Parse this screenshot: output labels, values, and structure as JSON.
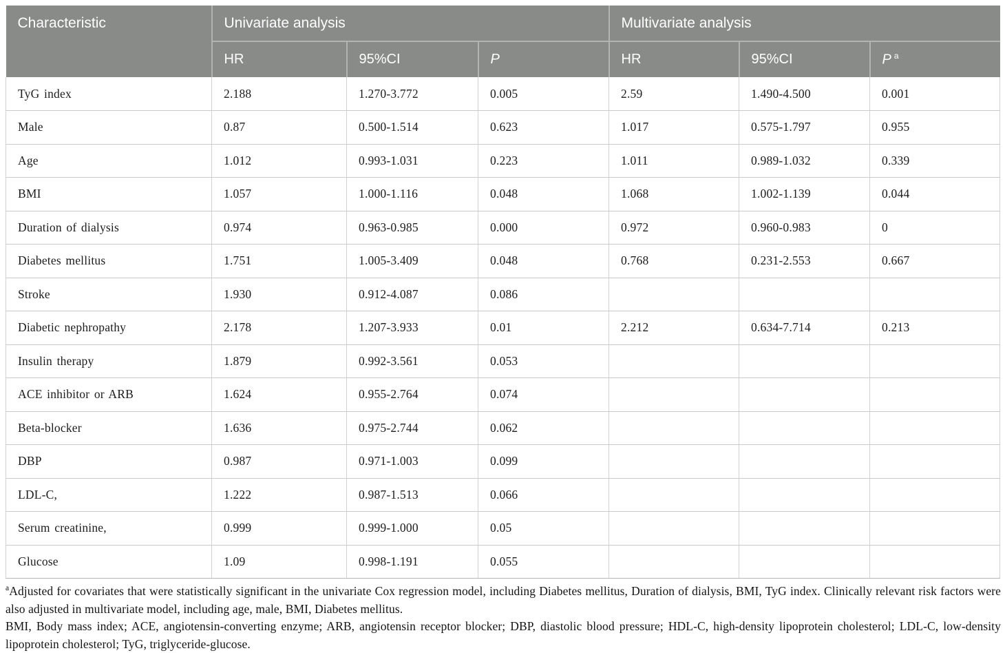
{
  "colors": {
    "header_bg": "#898b89",
    "header_text": "#ffffff",
    "body_text": "#1c1c1c",
    "row_border": "#c9c9c9"
  },
  "table": {
    "header": {
      "characteristic": "Characteristic",
      "univariate": "Univariate analysis",
      "multivariate": "Multivariate analysis",
      "hr1": "HR",
      "ci1": "95%CI",
      "p1": "P",
      "hr2": "HR",
      "ci2": "95%CI",
      "p2": "P",
      "p2_sup": "a"
    },
    "rows": [
      {
        "label": "TyG index",
        "u_hr": "2.188",
        "u_ci": "1.270-3.772",
        "u_p": "0.005",
        "m_hr": "2.59",
        "m_ci": "1.490-4.500",
        "m_p": "0.001"
      },
      {
        "label": "Male",
        "u_hr": "0.87",
        "u_ci": "0.500-1.514",
        "u_p": "0.623",
        "m_hr": "1.017",
        "m_ci": "0.575-1.797",
        "m_p": "0.955"
      },
      {
        "label": "Age",
        "u_hr": "1.012",
        "u_ci": "0.993-1.031",
        "u_p": "0.223",
        "m_hr": "1.011",
        "m_ci": "0.989-1.032",
        "m_p": "0.339"
      },
      {
        "label": "BMI",
        "u_hr": "1.057",
        "u_ci": "1.000-1.116",
        "u_p": "0.048",
        "m_hr": "1.068",
        "m_ci": "1.002-1.139",
        "m_p": "0.044"
      },
      {
        "label": "Duration of dialysis",
        "u_hr": "0.974",
        "u_ci": "0.963-0.985",
        "u_p": "0.000",
        "m_hr": "0.972",
        "m_ci": "0.960-0.983",
        "m_p": "0"
      },
      {
        "label": "Diabetes mellitus",
        "u_hr": "1.751",
        "u_ci": "1.005-3.409",
        "u_p": "0.048",
        "m_hr": "0.768",
        "m_ci": "0.231-2.553",
        "m_p": "0.667"
      },
      {
        "label": "Stroke",
        "u_hr": "1.930",
        "u_ci": "0.912-4.087",
        "u_p": "0.086",
        "m_hr": "",
        "m_ci": "",
        "m_p": ""
      },
      {
        "label": "Diabetic nephropathy",
        "u_hr": "2.178",
        "u_ci": "1.207-3.933",
        "u_p": "0.01",
        "m_hr": "2.212",
        "m_ci": "0.634-7.714",
        "m_p": "0.213"
      },
      {
        "label": "Insulin therapy",
        "u_hr": "1.879",
        "u_ci": "0.992-3.561",
        "u_p": "0.053",
        "m_hr": "",
        "m_ci": "",
        "m_p": ""
      },
      {
        "label": "ACE inhibitor or ARB",
        "u_hr": "1.624",
        "u_ci": "0.955-2.764",
        "u_p": "0.074",
        "m_hr": "",
        "m_ci": "",
        "m_p": ""
      },
      {
        "label": "Beta-blocker",
        "u_hr": "1.636",
        "u_ci": "0.975-2.744",
        "u_p": "0.062",
        "m_hr": "",
        "m_ci": "",
        "m_p": ""
      },
      {
        "label": "DBP",
        "u_hr": "0.987",
        "u_ci": "0.971-1.003",
        "u_p": "0.099",
        "m_hr": "",
        "m_ci": "",
        "m_p": ""
      },
      {
        "label": "LDL-C,",
        "u_hr": "1.222",
        "u_ci": "0.987-1.513",
        "u_p": "0.066",
        "m_hr": "",
        "m_ci": "",
        "m_p": ""
      },
      {
        "label": "Serum creatinine,",
        "u_hr": "0.999",
        "u_ci": "0.999-1.000",
        "u_p": "0.05",
        "m_hr": "",
        "m_ci": "",
        "m_p": ""
      },
      {
        "label": "Glucose",
        "u_hr": "1.09",
        "u_ci": "0.998-1.191",
        "u_p": "0.055",
        "m_hr": "",
        "m_ci": "",
        "m_p": ""
      }
    ]
  },
  "footnotes": {
    "sup": "a",
    "note_a": "Adjusted for covariates that were statistically significant in the univariate Cox regression model, including Diabetes mellitus, Duration of dialysis, BMI, TyG index. Clinically relevant risk factors were also adjusted in multivariate model, including age, male, BMI, Diabetes mellitus.",
    "abbreviations": "BMI, Body mass index; ACE, angiotensin-converting enzyme; ARB, angiotensin receptor blocker; DBP, diastolic blood pressure; HDL-C, high-density lipoprotein cholesterol; LDL-C, low-density lipoprotein cholesterol; TyG, triglyceride-glucose."
  }
}
